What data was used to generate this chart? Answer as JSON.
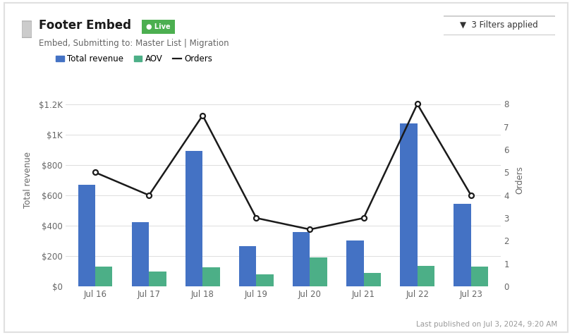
{
  "categories": [
    "Jul 16",
    "Jul 17",
    "Jul 18",
    "Jul 19",
    "Jul 20",
    "Jul 21",
    "Jul 22",
    "Jul 23"
  ],
  "total_revenue": [
    670,
    425,
    890,
    265,
    360,
    300,
    1075,
    545
  ],
  "aov": [
    130,
    100,
    125,
    80,
    190,
    90,
    135,
    130
  ],
  "orders": [
    5,
    4,
    7.5,
    3,
    2.5,
    3,
    8,
    4
  ],
  "bar_color_revenue": "#4472C4",
  "bar_color_aov": "#4CAF87",
  "line_color": "#1a1a1a",
  "background_color": "#ffffff",
  "grid_color": "#dddddd",
  "ylabel_left": "Total revenue",
  "ylabel_right": "Orders",
  "ylim_left": [
    0,
    1400
  ],
  "ylim_right": [
    0,
    9.33
  ],
  "yticks_left": [
    0,
    200,
    400,
    600,
    800,
    1000,
    1200
  ],
  "ytick_labels_left": [
    "$0",
    "$200",
    "$400",
    "$600",
    "$800",
    "$1K",
    "$1.2K"
  ],
  "yticks_right": [
    0,
    1,
    2,
    3,
    4,
    5,
    6,
    7,
    8
  ],
  "legend_labels": [
    "Total revenue",
    "AOV",
    "Orders"
  ],
  "title_text": "Footer Embed",
  "subtitle_text": "Embed, Submitting to: Master List | Migration",
  "live_badge_text": "Live",
  "live_badge_color": "#4CAF50",
  "filter_text": "▼  3 Filters applied",
  "footer_text": "Last published on Jul 3, 2024, 9:20 AM",
  "bar_width": 0.32,
  "outer_border_color": "#e0e0e0",
  "tick_label_color": "#666666",
  "axis_label_color": "#666666"
}
